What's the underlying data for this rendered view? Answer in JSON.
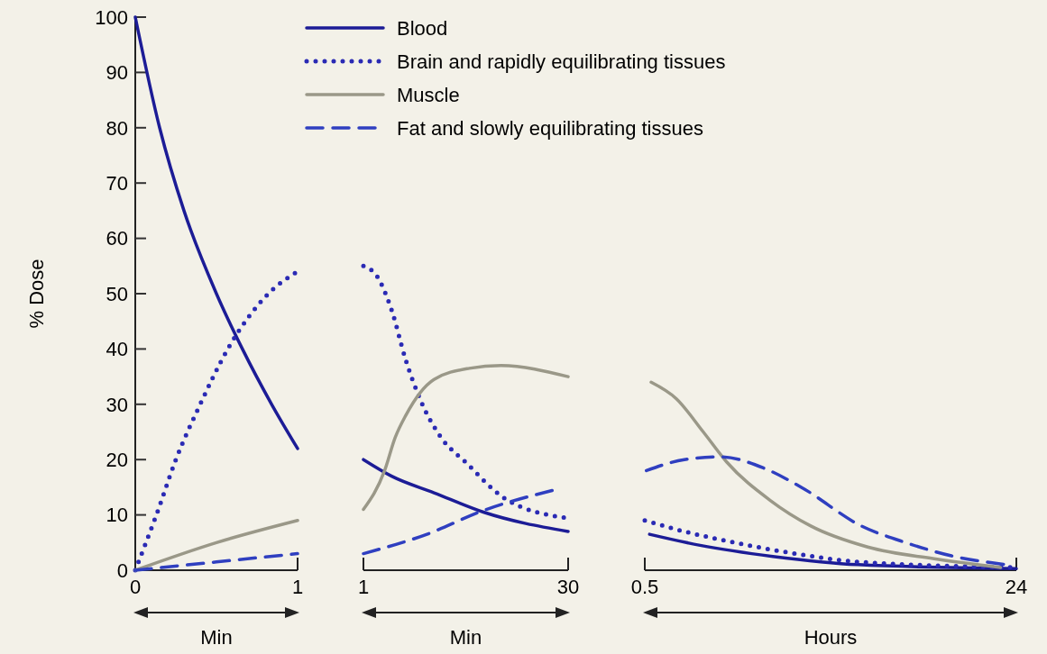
{
  "chart_data": [
    {
      "type": "line",
      "ylabel": "% Dose",
      "xlabel": "Min",
      "xlim": [
        0,
        1
      ],
      "xticks": [
        0,
        1
      ],
      "ylim": [
        0,
        100
      ],
      "yticks": [
        0,
        10,
        20,
        30,
        40,
        50,
        60,
        70,
        80,
        90,
        100
      ],
      "legend": "right",
      "series": [
        {
          "name": "Blood",
          "color": "#1c1c96",
          "line_style": "solid",
          "x": [
            0,
            0.15,
            0.3,
            0.5,
            0.66,
            0.84,
            1
          ],
          "values": [
            100,
            80,
            65,
            50,
            40,
            30,
            22
          ]
        },
        {
          "name": "Brain and rapidly equilibrating tissues",
          "color": "#2a2ab4",
          "line_style": "dotted",
          "x": [
            0,
            0.13,
            0.25,
            0.4,
            0.57,
            0.82,
            1
          ],
          "values": [
            0,
            10,
            20,
            30,
            40,
            50,
            54
          ]
        },
        {
          "name": "Muscle",
          "color": "#9a9888",
          "line_style": "solid",
          "x": [
            0,
            0.5,
            1
          ],
          "values": [
            0,
            5,
            9
          ]
        },
        {
          "name": "Fat and slowly equilibrating tissues",
          "color": "#2f3fc0",
          "line_style": "dashed",
          "x": [
            0,
            0.5,
            1
          ],
          "values": [
            0,
            1.5,
            3
          ]
        }
      ]
    },
    {
      "type": "line",
      "xlabel": "Min",
      "xlim": [
        1,
        30
      ],
      "xticks": [
        1,
        30
      ],
      "ylim": [
        0,
        100
      ],
      "tick_labels": "x",
      "series": [
        {
          "color": "#1c1c96",
          "line_style": "solid",
          "x": [
            1,
            5,
            11,
            18,
            30
          ],
          "values": [
            20,
            17,
            14,
            10.5,
            7
          ]
        },
        {
          "color": "#2a2ab4",
          "line_style": "dotted",
          "x": [
            1,
            3,
            5,
            7,
            9,
            12,
            15.5,
            21,
            29.5
          ],
          "values": [
            55,
            53,
            47,
            38,
            31,
            24,
            19.5,
            13,
            9.5
          ]
        },
        {
          "color": "#9a9888",
          "line_style": "solid",
          "x": [
            1,
            4,
            5.5,
            7,
            11,
            16,
            20.5,
            30
          ],
          "values": [
            11,
            18,
            24,
            28,
            34.5,
            36.5,
            37,
            35
          ]
        },
        {
          "color": "#2f3fc0",
          "line_style": "dashed",
          "x": [
            1,
            10,
            18,
            28
          ],
          "values": [
            3,
            6.5,
            10.8,
            14.5
          ]
        }
      ]
    },
    {
      "type": "line",
      "xlabel": "Hours",
      "xlim": [
        0.5,
        24
      ],
      "xticks": [
        0.5,
        24
      ],
      "ylim": [
        0,
        100
      ],
      "tick_labels": "x",
      "series": [
        {
          "color": "#1c1c96",
          "line_style": "solid",
          "x": [
            0.8,
            4,
            8.6,
            14,
            24
          ],
          "values": [
            6.5,
            4.5,
            2.5,
            1,
            0.3
          ]
        },
        {
          "color": "#2a2ab4",
          "line_style": "dotted",
          "x": [
            0.5,
            3,
            6.2,
            10,
            14,
            24
          ],
          "values": [
            9,
            7,
            5,
            3,
            1.5,
            0.5
          ]
        },
        {
          "color": "#9a9888",
          "line_style": "solid",
          "x": [
            0.9,
            2.5,
            4.2,
            5.7,
            8.4,
            11,
            14.6,
            19,
            23
          ],
          "values": [
            34,
            31,
            25,
            19.5,
            12.7,
            8,
            4.2,
            2,
            0.5
          ]
        },
        {
          "color": "#2f3fc0",
          "line_style": "dashed",
          "x": [
            0.6,
            3,
            5.3,
            8,
            10.4,
            14.2,
            17,
            19.9,
            23.4
          ],
          "values": [
            18,
            20,
            20.5,
            18.5,
            15,
            8,
            5,
            2.6,
            1
          ]
        }
      ]
    }
  ]
}
